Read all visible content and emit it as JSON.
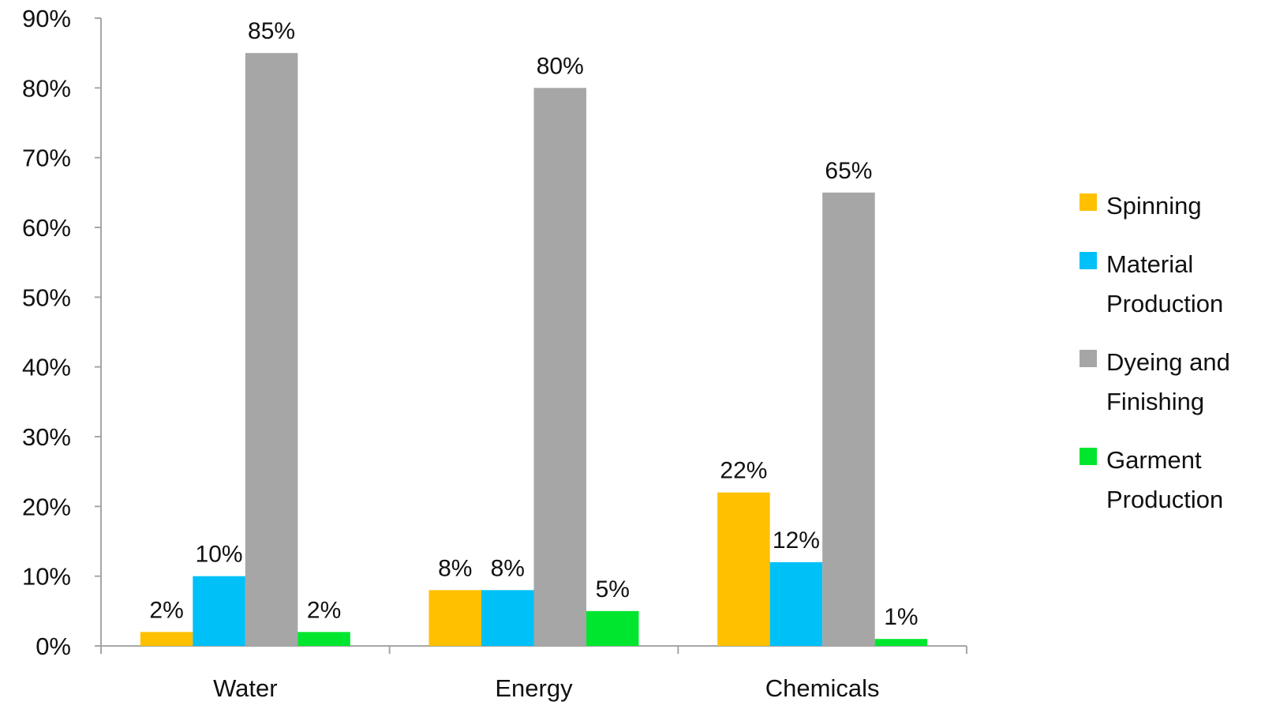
{
  "chart_data": {
    "type": "bar",
    "categories": [
      "Water",
      "Energy",
      "Chemicals"
    ],
    "series": [
      {
        "name": "Spinning",
        "values": [
          2,
          8,
          22
        ],
        "labels": [
          "2%",
          "8%",
          "22%"
        ],
        "color": "#FFC000"
      },
      {
        "name": "Material Production",
        "values": [
          10,
          8,
          12
        ],
        "labels": [
          "10%",
          "8%",
          "12%"
        ],
        "color": "#00C0F8"
      },
      {
        "name": "Dyeing and Finishing",
        "values": [
          85,
          80,
          65
        ],
        "labels": [
          "85%",
          "80%",
          "65%"
        ],
        "color": "#A6A6A6"
      },
      {
        "name": "Garment Production",
        "values": [
          2,
          5,
          1
        ],
        "labels": [
          "2%",
          "5%",
          "1%"
        ],
        "color": "#00E62E"
      }
    ],
    "yticks": [
      "0%",
      "10%",
      "20%",
      "30%",
      "40%",
      "50%",
      "60%",
      "70%",
      "80%",
      "90%"
    ],
    "ylim": [
      0,
      90
    ],
    "grid": false,
    "legend_position": "right",
    "axis_color": "#A6A6A6"
  }
}
